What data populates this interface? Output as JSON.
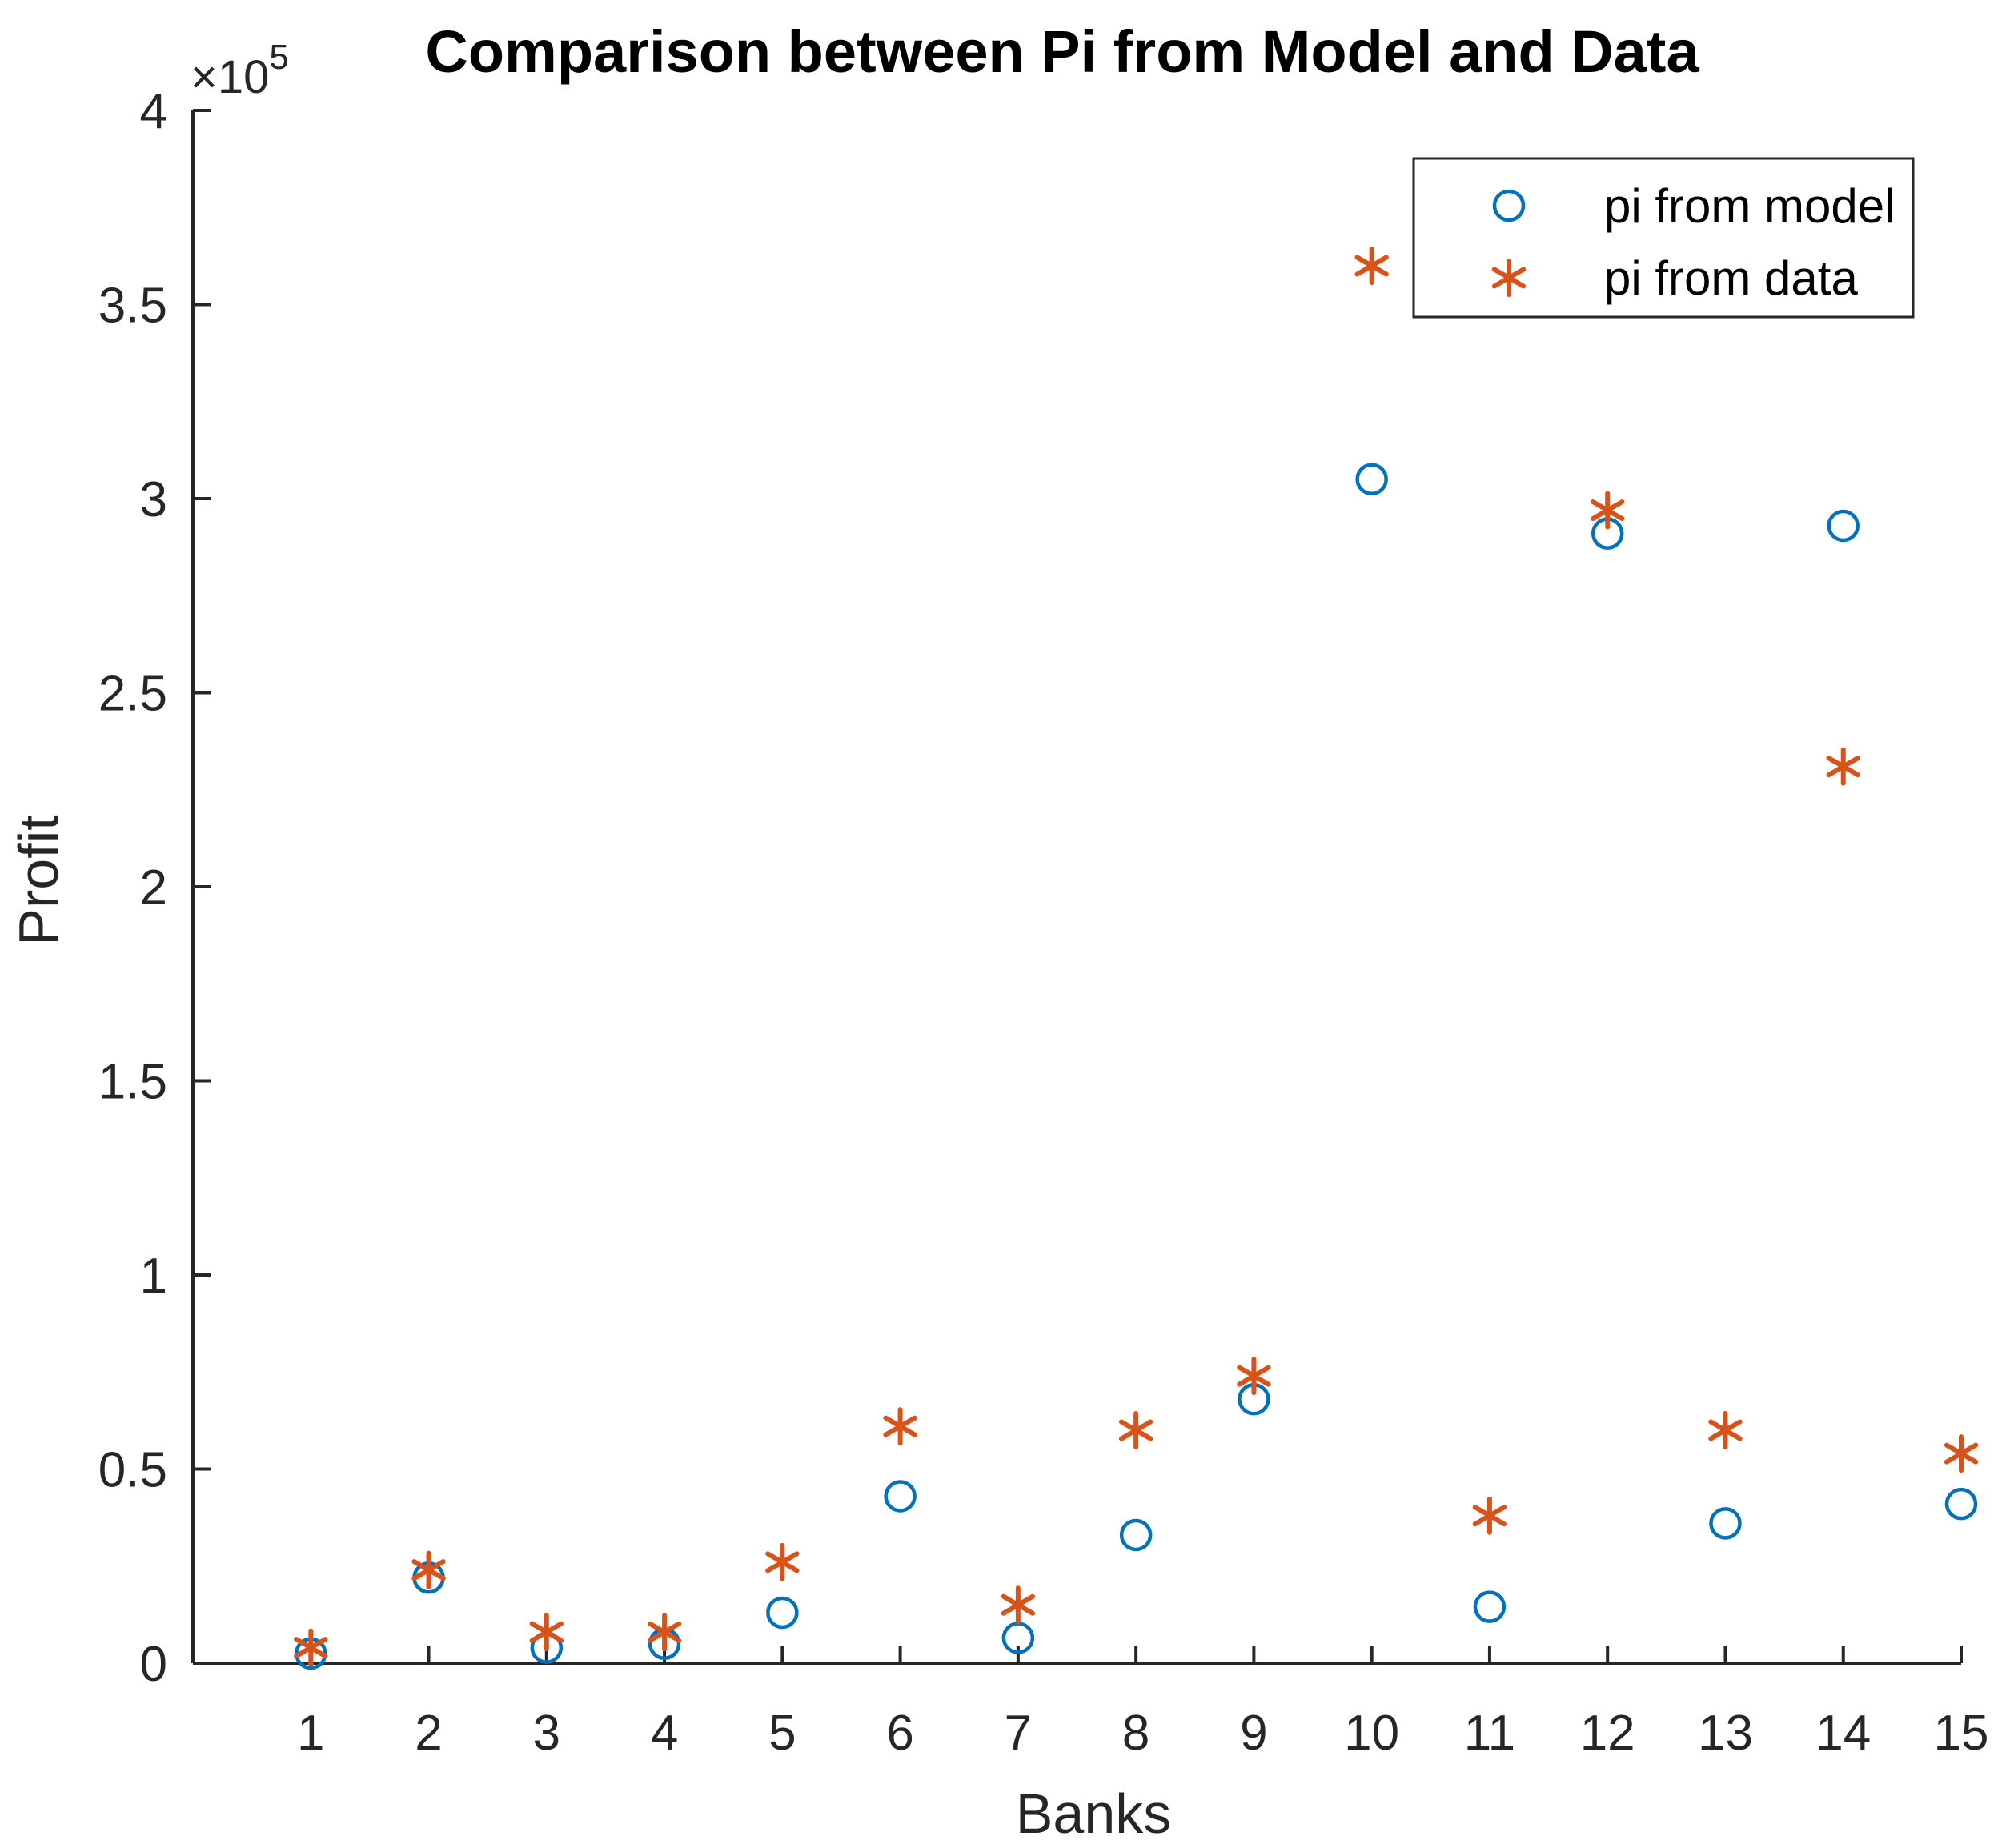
{
  "chart_data": {
    "type": "scatter",
    "title": "Comparison between Pi from Model and Data",
    "xlabel": "Banks",
    "ylabel": "Profit",
    "x": [
      1,
      2,
      3,
      4,
      5,
      6,
      7,
      8,
      9,
      10,
      11,
      12,
      13,
      14,
      15
    ],
    "xlim": [
      0,
      15
    ],
    "ylim": [
      0,
      400000
    ],
    "y_multiplier": "×10",
    "y_multiplier_exponent": "5",
    "x_ticks": [
      "1",
      "2",
      "3",
      "4",
      "5",
      "6",
      "7",
      "8",
      "9",
      "10",
      "11",
      "12",
      "13",
      "14",
      "15"
    ],
    "y_ticks": [
      {
        "value": 0,
        "label": "0"
      },
      {
        "value": 50000,
        "label": "0.5"
      },
      {
        "value": 100000,
        "label": "1"
      },
      {
        "value": 150000,
        "label": "1.5"
      },
      {
        "value": 200000,
        "label": "2"
      },
      {
        "value": 250000,
        "label": "2.5"
      },
      {
        "value": 300000,
        "label": "3"
      },
      {
        "value": 350000,
        "label": "3.5"
      },
      {
        "value": 400000,
        "label": "4"
      }
    ],
    "series": [
      {
        "name": "pi from model",
        "marker": "circle",
        "color": "#0072BD",
        "values": [
          2500,
          22000,
          4000,
          5000,
          13000,
          43000,
          6500,
          33000,
          68000,
          305000,
          14500,
          291000,
          36000,
          293000,
          41000
        ]
      },
      {
        "name": "pi from data",
        "marker": "asterisk",
        "color": "#D95319",
        "values": [
          4000,
          24000,
          8000,
          8000,
          26000,
          61000,
          15000,
          60000,
          74000,
          360000,
          38000,
          297000,
          60000,
          231000,
          54000
        ]
      }
    ],
    "legend_position": "top-right"
  }
}
